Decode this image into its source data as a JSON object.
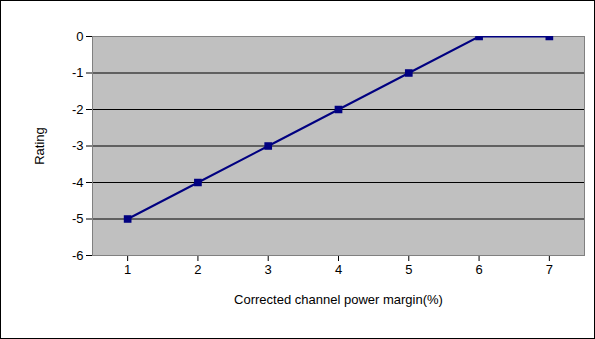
{
  "chart_data": {
    "type": "line",
    "x": [
      1,
      2,
      3,
      4,
      5,
      6,
      7
    ],
    "values": [
      -5,
      -4,
      -3,
      -2,
      -1,
      0,
      0
    ],
    "xlabel": "Corrected channel power margin(%)",
    "ylabel": "Rating",
    "xlim": [
      0.5,
      7.5
    ],
    "xticks": [
      1,
      2,
      3,
      4,
      5,
      6,
      7
    ],
    "ylim": [
      -6,
      0
    ],
    "yticks": [
      -6,
      -5,
      -4,
      -3,
      -2,
      -1,
      0
    ],
    "grid": true,
    "color": "#000080",
    "marker": "square"
  }
}
